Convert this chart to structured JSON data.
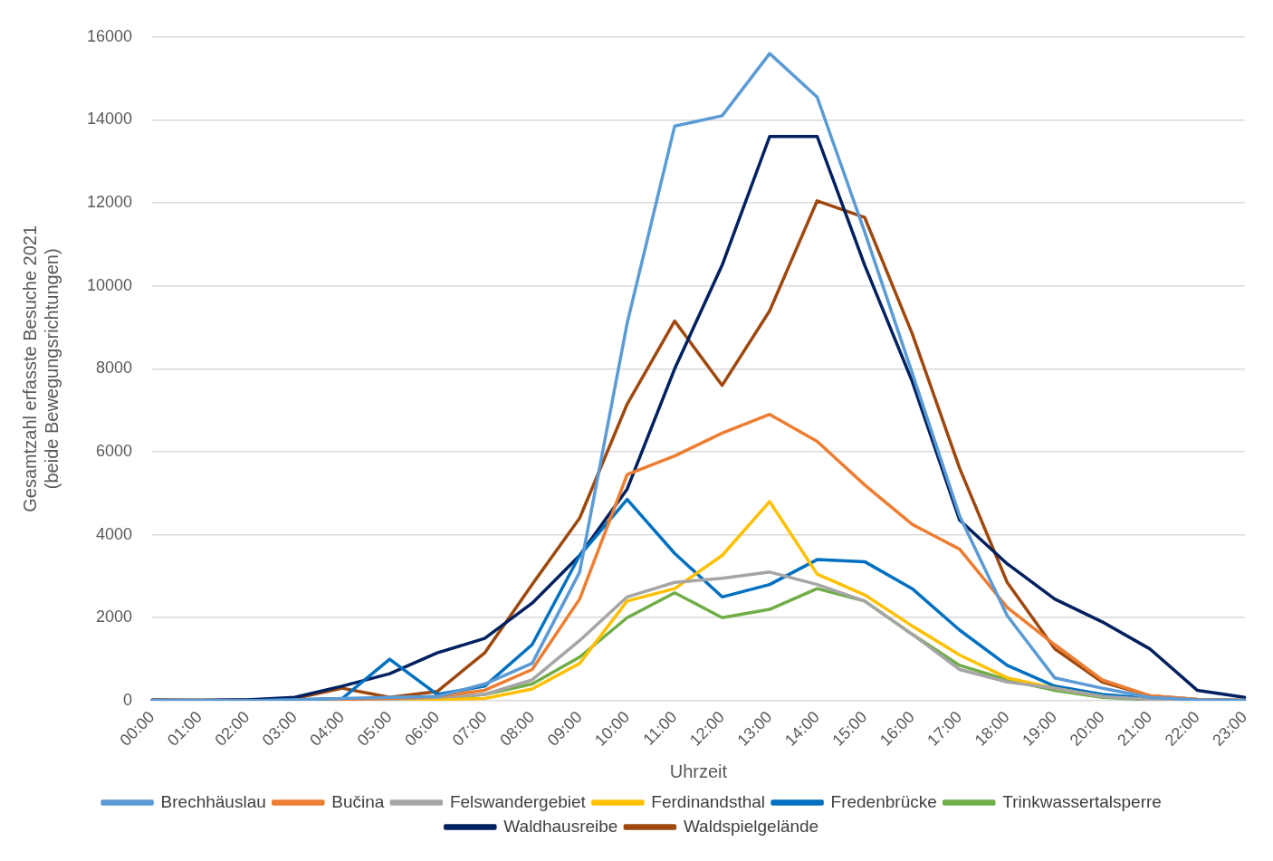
{
  "chart_data": {
    "type": "line",
    "xlabel": "Uhrzeit",
    "ylabel": "Gesamtzahl erfasste Besuche 2021\n(beide Bewegungsrichtungen)",
    "categories": [
      "00:00",
      "01:00",
      "02:00",
      "03:00",
      "04:00",
      "05:00",
      "06:00",
      "07:00",
      "08:00",
      "09:00",
      "10:00",
      "11:00",
      "12:00",
      "13:00",
      "14:00",
      "15:00",
      "16:00",
      "17:00",
      "18:00",
      "19:00",
      "20:00",
      "21:00",
      "22:00",
      "23:00"
    ],
    "ylim": [
      0,
      16000
    ],
    "yticks": [
      0,
      2000,
      4000,
      6000,
      8000,
      10000,
      12000,
      14000,
      16000
    ],
    "grid": "y",
    "legend": "bottom",
    "marker": "none",
    "line_style": "solid",
    "series": [
      {
        "name": "Brechhäuslau",
        "color": "#5b9bd5",
        "values": [
          10,
          0,
          0,
          20,
          50,
          80,
          100,
          400,
          900,
          3100,
          9100,
          13850,
          14100,
          15600,
          14550,
          11300,
          7900,
          4450,
          2050,
          550,
          300,
          80,
          20,
          10
        ]
      },
      {
        "name": "Bučina",
        "color": "#ed7d31",
        "values": [
          null,
          null,
          null,
          20,
          30,
          50,
          100,
          250,
          750,
          2450,
          5450,
          5900,
          6450,
          6900,
          6250,
          5200,
          4250,
          3650,
          2250,
          1350,
          500,
          120,
          30,
          10
        ]
      },
      {
        "name": "Felswandergebiet",
        "color": "#a5a5a5",
        "values": [
          0,
          0,
          0,
          0,
          20,
          30,
          80,
          150,
          500,
          1450,
          2500,
          2850,
          2950,
          3100,
          2800,
          2400,
          1600,
          750,
          450,
          300,
          100,
          30,
          10,
          0
        ]
      },
      {
        "name": "Ferdinandsthal",
        "color": "#ffc000",
        "values": [
          null,
          null,
          null,
          null,
          0,
          0,
          30,
          50,
          280,
          900,
          2400,
          2700,
          3500,
          4800,
          3050,
          2550,
          1800,
          1100,
          550,
          300,
          100,
          null,
          null,
          null
        ]
      },
      {
        "name": "Fredenbrücke",
        "color": "#0070c0",
        "values": [
          0,
          0,
          0,
          20,
          50,
          1000,
          150,
          350,
          1350,
          3500,
          4850,
          3550,
          2500,
          2800,
          3400,
          3350,
          2700,
          1700,
          850,
          350,
          150,
          50,
          10,
          0
        ]
      },
      {
        "name": "Trinkwassertalsperre",
        "color": "#70ad47",
        "values": [
          null,
          null,
          null,
          null,
          null,
          null,
          50,
          150,
          400,
          1050,
          2000,
          2600,
          2000,
          2200,
          2700,
          2400,
          1600,
          850,
          500,
          250,
          80,
          20,
          0,
          0
        ]
      },
      {
        "name": "Waldhausreibe",
        "color": "#002060",
        "values": [
          10,
          10,
          20,
          80,
          350,
          650,
          1150,
          1500,
          2350,
          3500,
          5100,
          8000,
          10500,
          13600,
          13600,
          10500,
          7700,
          4350,
          3300,
          2450,
          1900,
          1250,
          250,
          80
        ]
      },
      {
        "name": "Waldspielgelände",
        "color": "#9e480e",
        "values": [
          20,
          10,
          10,
          50,
          300,
          80,
          220,
          1150,
          2800,
          4400,
          7150,
          9150,
          7600,
          9400,
          12050,
          11650,
          8850,
          5600,
          2850,
          1250,
          450,
          120,
          30,
          10
        ]
      }
    ]
  }
}
